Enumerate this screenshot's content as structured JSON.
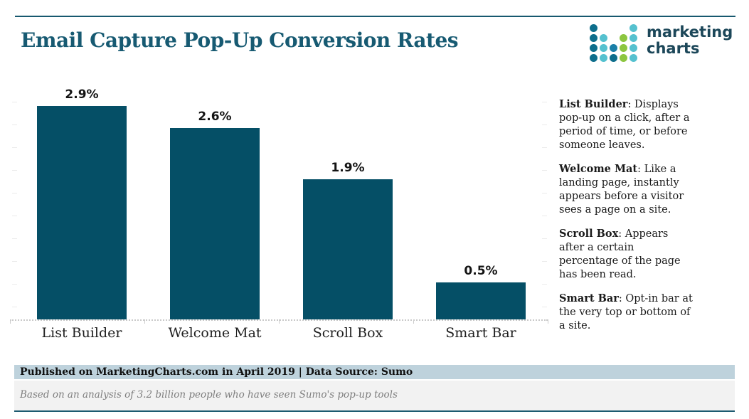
{
  "page": {
    "title": "Email Capture Pop-Up Conversion Rates"
  },
  "logo": {
    "name": "marketing-charts-logo",
    "line1": "marketing",
    "line2": "charts",
    "palette": {
      "dark": "#0d6e8c",
      "cyan": "#55c1cf",
      "green": "#8cc640",
      "blue": "#1a7fa8"
    },
    "dot_grid": [
      [
        "dark",
        "",
        "",
        "",
        "cyan"
      ],
      [
        "dark",
        "cyan",
        "",
        "green",
        "cyan"
      ],
      [
        "dark",
        "cyan",
        "blue",
        "green",
        "cyan"
      ],
      [
        "dark",
        "cyan",
        "dark",
        "green",
        "cyan"
      ]
    ]
  },
  "chart_data": {
    "type": "bar",
    "title": "Email Capture Pop-Up Conversion Rates",
    "categories": [
      "List Builder",
      "Welcome Mat",
      "Scroll Box",
      "Smart Bar"
    ],
    "values": [
      2.9,
      2.6,
      1.9,
      0.5
    ],
    "value_labels": [
      "2.9%",
      "2.6%",
      "1.9%",
      "0.5%"
    ],
    "unit": "percent",
    "bar_color": "#054f66",
    "xlabel": "",
    "ylabel": "",
    "ylim": [
      0,
      3.2
    ],
    "grid": false,
    "legend_position": "none",
    "data_labels": "above-bars",
    "y_axis_visible": false
  },
  "definitions": [
    {
      "term": "List Builder",
      "text": ": Displays pop-up on a click, after a period of time, or before someone leaves."
    },
    {
      "term": "Welcome Mat",
      "text": ": Like a landing page, instantly appears before a visitor sees a page on a site."
    },
    {
      "term": "Scroll Box",
      "text": ": Appears after a certain percentage of the page has been read."
    },
    {
      "term": "Smart Bar",
      "text": ": Opt-in bar at the very top or bottom of a site."
    }
  ],
  "footer": {
    "published": "Published on MarketingCharts.com in April 2019 | Data Source: Sumo",
    "note": "Based on an analysis of 3.2 billion people who have seen Sumo's pop-up tools"
  },
  "colors": {
    "brand_teal": "#175a72",
    "bar_teal": "#054f66",
    "published_band": "#bed2dc",
    "note_band": "#f2f2f2",
    "bottom_rule": "#1d5a70",
    "axis_gray": "#c9c9c9"
  }
}
